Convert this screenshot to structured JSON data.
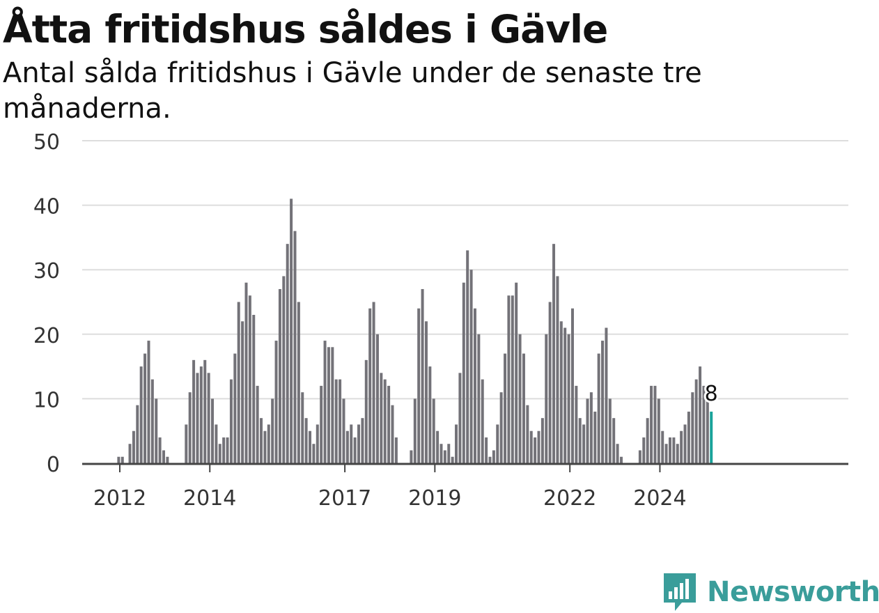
{
  "header": {
    "title": "Åtta fritidshus såldes i Gävle",
    "subtitle": "Antal sålda fritidshus i Gävle under de senaste tre månaderna."
  },
  "brand": {
    "name": "Newsworthy",
    "icon": "newsworthy-logo-icon",
    "color": "#3a9d9a"
  },
  "chart_data": {
    "type": "bar",
    "ylim": [
      0,
      50
    ],
    "y_ticks": [
      "0",
      "10",
      "20",
      "30",
      "40",
      "50"
    ],
    "x_ticks": [
      "2012",
      "2014",
      "2017",
      "2019",
      "2022",
      "2024"
    ],
    "grid": true,
    "bar_color": "#737278",
    "highlight_color": "#1aa39a",
    "highlight_label": "8",
    "values": [
      0,
      1,
      1,
      0,
      3,
      5,
      9,
      15,
      17,
      19,
      13,
      10,
      4,
      2,
      1,
      0,
      0,
      0,
      0,
      6,
      11,
      16,
      14,
      15,
      16,
      14,
      10,
      6,
      3,
      4,
      4,
      13,
      17,
      25,
      22,
      28,
      26,
      23,
      12,
      7,
      5,
      6,
      10,
      19,
      27,
      29,
      34,
      41,
      36,
      25,
      11,
      7,
      5,
      3,
      6,
      12,
      19,
      18,
      18,
      13,
      13,
      10,
      5,
      6,
      4,
      6,
      7,
      16,
      24,
      25,
      20,
      14,
      13,
      12,
      9,
      4,
      0,
      0,
      0,
      2,
      10,
      24,
      27,
      22,
      15,
      10,
      5,
      3,
      2,
      3,
      1,
      6,
      14,
      28,
      33,
      30,
      24,
      20,
      13,
      4,
      1,
      2,
      6,
      11,
      17,
      26,
      26,
      28,
      20,
      17,
      9,
      5,
      4,
      5,
      7,
      20,
      25,
      34,
      29,
      22,
      21,
      20,
      24,
      12,
      7,
      6,
      10,
      11,
      8,
      17,
      19,
      21,
      10,
      7,
      3,
      1,
      0,
      0,
      0,
      0,
      2,
      4,
      7,
      12,
      12,
      10,
      5,
      3,
      4,
      4,
      3,
      5,
      6,
      8,
      11,
      13,
      15,
      12,
      10,
      8
    ]
  }
}
